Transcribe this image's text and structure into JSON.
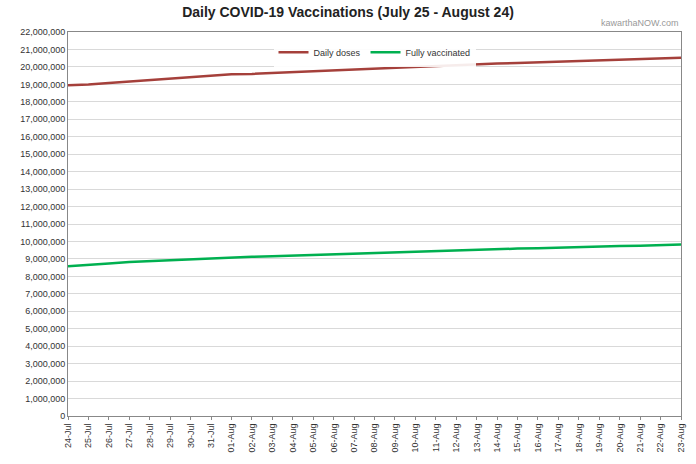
{
  "chart_data": {
    "type": "line",
    "title": "Daily COVID-19 Vaccinations (July 25 - August 24)",
    "annotations": [
      "kawarthaNOW.com"
    ],
    "categories": [
      "24-Jul",
      "25-Jul",
      "26-Jul",
      "27-Jul",
      "28-Jul",
      "29-Jul",
      "30-Jul",
      "31-Jul",
      "01-Aug",
      "02-Aug",
      "03-Aug",
      "04-Aug",
      "05-Aug",
      "06-Aug",
      "07-Aug",
      "08-Aug",
      "09-Aug",
      "10-Aug",
      "11-Aug",
      "12-Aug",
      "13-Aug",
      "14-Aug",
      "15-Aug",
      "16-Aug",
      "17-Aug",
      "18-Aug",
      "19-Aug",
      "20-Aug",
      "21-Aug",
      "22-Aug",
      "23-Aug"
    ],
    "series": [
      {
        "name": "Daily doses",
        "color": "#a5403b",
        "line_style": "solid",
        "values": [
          18950000,
          18990000,
          19080000,
          19170000,
          19260000,
          19350000,
          19440000,
          19500000,
          19580000,
          19600000,
          19650000,
          19730000,
          19780000,
          19830000,
          19880000,
          19920000,
          19960000,
          20010000,
          20060000,
          20100000,
          20150000,
          20190000,
          20230000,
          20270000,
          20310000,
          20350000,
          20390000,
          20420000,
          20440000,
          20480000,
          20520000
        ]
      },
      {
        "name": "Fully vaccinated",
        "color": "#00b050",
        "line_style": "solid",
        "values": [
          8580000,
          8640000,
          8730000,
          8820000,
          8870000,
          8960000,
          9010000,
          9050000,
          9080000,
          9120000,
          9150000,
          9190000,
          9230000,
          9270000,
          9300000,
          9330000,
          9380000,
          9420000,
          9460000,
          9490000,
          9510000,
          9550000,
          9590000,
          9610000,
          9650000,
          9680000,
          9700000,
          9740000,
          9760000,
          9770000,
          9820000
        ]
      }
    ],
    "ylim": [
      0,
      22000000
    ],
    "yticks": [
      0,
      {
        "value": 1000000,
        "label": "1,000,000"
      },
      {
        "value": 2000000,
        "label": "2,000,000"
      },
      {
        "value": 3000000,
        "label": "3,000,000"
      },
      {
        "value": 4000000,
        "label": "4,000,000"
      },
      {
        "value": 5000000,
        "label": "5,000,000"
      },
      {
        "value": 6000000,
        "label": "6,000,000"
      },
      {
        "value": 7000000,
        "label": "7,000,000"
      },
      {
        "value": 8000000,
        "label": "8,000,000"
      },
      {
        "value": 9000000,
        "label": "9,000,000"
      },
      {
        "value": 10000000,
        "label": "10,000,000"
      },
      {
        "value": 11000000,
        "label": "11,000,000"
      },
      {
        "value": 12000000,
        "label": "12,000,000"
      },
      {
        "value": 13000000,
        "label": "13,000,000"
      },
      {
        "value": 14000000,
        "label": "14,000,000"
      },
      {
        "value": 15000000,
        "label": "15,000,000"
      },
      {
        "value": 16000000,
        "label": "16,000,000"
      },
      {
        "value": 17000000,
        "label": "17,000,000"
      },
      {
        "value": 18000000,
        "label": "18,000,000"
      },
      {
        "value": 19000000,
        "label": "19,000,000"
      },
      {
        "value": 20000000,
        "label": "20,000,000"
      },
      {
        "value": 21000000,
        "label": "21,000,000"
      },
      {
        "value": 22000000,
        "label": "22,000,000"
      }
    ],
    "grid": true,
    "legend": "top"
  }
}
